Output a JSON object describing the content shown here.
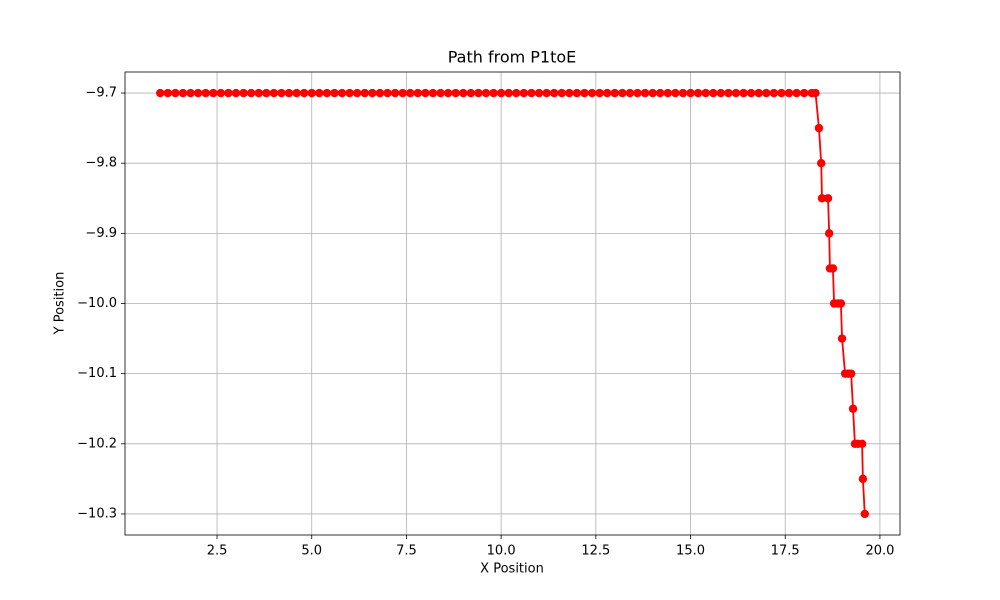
{
  "chart_data": {
    "type": "line",
    "title": "Path from P1toE",
    "xlabel": "X Position",
    "ylabel": "Y Position",
    "series": [
      {
        "color": "#ff0000",
        "x": [
          1,
          1.2,
          1.4,
          1.6,
          1.8,
          2,
          2.2,
          2.4,
          2.6,
          2.8,
          3,
          3.2,
          3.4,
          3.6,
          3.8,
          4,
          4.2,
          4.4,
          4.6,
          4.8,
          5,
          5.2,
          5.4,
          5.6,
          5.8,
          6,
          6.2,
          6.4,
          6.6,
          6.8,
          7,
          7.2,
          7.4,
          7.6,
          7.8,
          8,
          8.2,
          8.4,
          8.6,
          8.8,
          9,
          9.2,
          9.4,
          9.6,
          9.8,
          10,
          10.2,
          10.4,
          10.6,
          10.8,
          11,
          11.2,
          11.4,
          11.6,
          11.8,
          12,
          12.2,
          12.4,
          12.6,
          12.8,
          13,
          13.2,
          13.4,
          13.6,
          13.8,
          14,
          14.2,
          14.4,
          14.6,
          14.8,
          15,
          15.2,
          15.4,
          15.6,
          15.8,
          16,
          16.2,
          16.4,
          16.6,
          16.8,
          17,
          17.2,
          17.4,
          17.6,
          17.8,
          18,
          18.2,
          18.3,
          18.39,
          18.45,
          18.47,
          18.63,
          18.66,
          18.68,
          18.76,
          18.79,
          18.89,
          18.97,
          19.0,
          19.08,
          19.16,
          19.24,
          19.29,
          19.34,
          19.42,
          19.53,
          19.55,
          19.6
        ],
        "values": [
          -9.7,
          -9.7,
          -9.7,
          -9.7,
          -9.7,
          -9.7,
          -9.7,
          -9.7,
          -9.7,
          -9.7,
          -9.7,
          -9.7,
          -9.7,
          -9.7,
          -9.7,
          -9.7,
          -9.7,
          -9.7,
          -9.7,
          -9.7,
          -9.7,
          -9.7,
          -9.7,
          -9.7,
          -9.7,
          -9.7,
          -9.7,
          -9.7,
          -9.7,
          -9.7,
          -9.7,
          -9.7,
          -9.7,
          -9.7,
          -9.7,
          -9.7,
          -9.7,
          -9.7,
          -9.7,
          -9.7,
          -9.7,
          -9.7,
          -9.7,
          -9.7,
          -9.7,
          -9.7,
          -9.7,
          -9.7,
          -9.7,
          -9.7,
          -9.7,
          -9.7,
          -9.7,
          -9.7,
          -9.7,
          -9.7,
          -9.7,
          -9.7,
          -9.7,
          -9.7,
          -9.7,
          -9.7,
          -9.7,
          -9.7,
          -9.7,
          -9.7,
          -9.7,
          -9.7,
          -9.7,
          -9.7,
          -9.7,
          -9.7,
          -9.7,
          -9.7,
          -9.7,
          -9.7,
          -9.7,
          -9.7,
          -9.7,
          -9.7,
          -9.7,
          -9.7,
          -9.7,
          -9.7,
          -9.7,
          -9.7,
          -9.7,
          -9.7,
          -9.75,
          -9.8,
          -9.85,
          -9.85,
          -9.9,
          -9.95,
          -9.95,
          -10,
          -10,
          -10,
          -10.05,
          -10.1,
          -10.1,
          -10.1,
          -10.15,
          -10.2,
          -10.2,
          -10.2,
          -10.25,
          -10.3
        ]
      }
    ],
    "xlim": [
      0.07,
      20.53
    ],
    "xticks": [
      2.5,
      {
        "value": 5,
        "label": "5.0"
      },
      7.5,
      {
        "value": 10,
        "label": "10.0"
      },
      12.5,
      {
        "value": 15,
        "label": "15.0"
      },
      17.5,
      {
        "value": 20,
        "label": "20.0"
      }
    ],
    "ylim": [
      -10.33,
      -9.67
    ],
    "yticks": [
      {
        "value": -9.7,
        "label": "−9.7"
      },
      {
        "value": -9.8,
        "label": "−9.8"
      },
      {
        "value": -9.9,
        "label": "−9.9"
      },
      {
        "value": -10,
        "label": "−10.0"
      },
      {
        "value": -10.1,
        "label": "−10.1"
      },
      {
        "value": -10.2,
        "label": "−10.2"
      },
      {
        "value": -10.3,
        "label": "−10.3"
      }
    ],
    "grid": true
  }
}
